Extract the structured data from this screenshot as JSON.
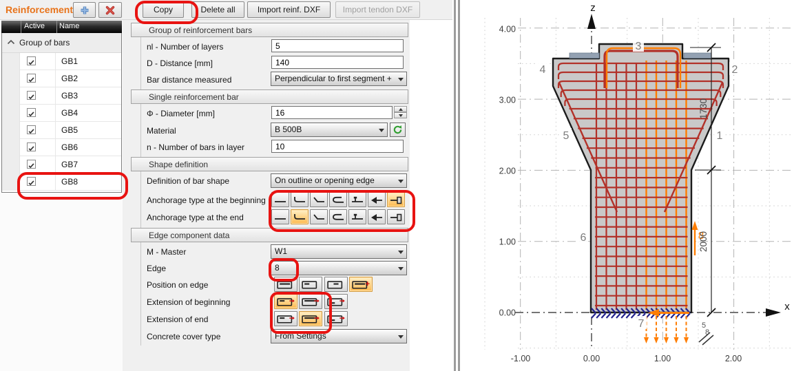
{
  "toolbar": {
    "title": "Reinforcement",
    "copy_label": "Copy",
    "delete_all_label": "Delete all",
    "import_reinf_label": "Import reinf. DXF",
    "import_tendon_label": "Import tendon DXF"
  },
  "tree": {
    "columns": {
      "active": "Active",
      "name": "Name"
    },
    "group_label": "Group of bars",
    "items": [
      {
        "name": "GB1"
      },
      {
        "name": "GB2"
      },
      {
        "name": "GB3"
      },
      {
        "name": "GB4"
      },
      {
        "name": "GB5"
      },
      {
        "name": "GB6"
      },
      {
        "name": "GB7"
      },
      {
        "name": "GB8"
      }
    ]
  },
  "props": {
    "group_header": "Group of reinforcement bars",
    "nl_label": "nl - Number of layers",
    "nl_value": "5",
    "d_label": "D - Distance [mm]",
    "d_value": "140",
    "bar_dist_label": "Bar distance measured",
    "bar_dist_value": "Perpendicular to first segment + ",
    "single_header": "Single reinforcement bar",
    "dia_label": "Φ - Diameter [mm]",
    "dia_value": "16",
    "material_label": "Material",
    "material_value": "B 500B",
    "n_label": "n - Number of bars in layer",
    "n_value": "10",
    "shape_header": "Shape definition",
    "def_label": "Definition of bar shape",
    "def_value": "On outline or opening edge",
    "anch_begin_label": "Anchorage type at the beginning",
    "anch_end_label": "Anchorage type at the end",
    "edge_header": "Edge component data",
    "master_label": "M - Master",
    "master_value": "W1",
    "edge_label": "Edge",
    "edge_value": "8",
    "pos_label": "Position on edge",
    "ext_begin_label": "Extension of beginning",
    "ext_end_label": "Extension of end",
    "cover_label": "Concrete cover type",
    "cover_value": "From Settings"
  },
  "diagram": {
    "y_ticks": [
      "4.00",
      "3.00",
      "2.00",
      "1.00",
      "0.00"
    ],
    "x_ticks": [
      "-1.00",
      "0.00",
      "1.00",
      "2.00"
    ],
    "z_label": "z",
    "x_label": "x",
    "edges": {
      "e1": "1",
      "e2": "2",
      "e3": "3",
      "e4": "4",
      "e5": "5",
      "e6": "6",
      "e7": "7",
      "e8": "8"
    },
    "corner_top": "5",
    "corner_bottom": "8",
    "dims": {
      "upper": "1730",
      "lower": "2000"
    },
    "colors": {
      "selected_group": "#ff7d00",
      "rebar": "#b23129",
      "concrete_fill": "#c9c9c9",
      "bearing_pad": "#93a1b2",
      "support_hatch": "#23238f",
      "annotation_red": "#e81311",
      "title_orange": "#e8731a"
    }
  }
}
